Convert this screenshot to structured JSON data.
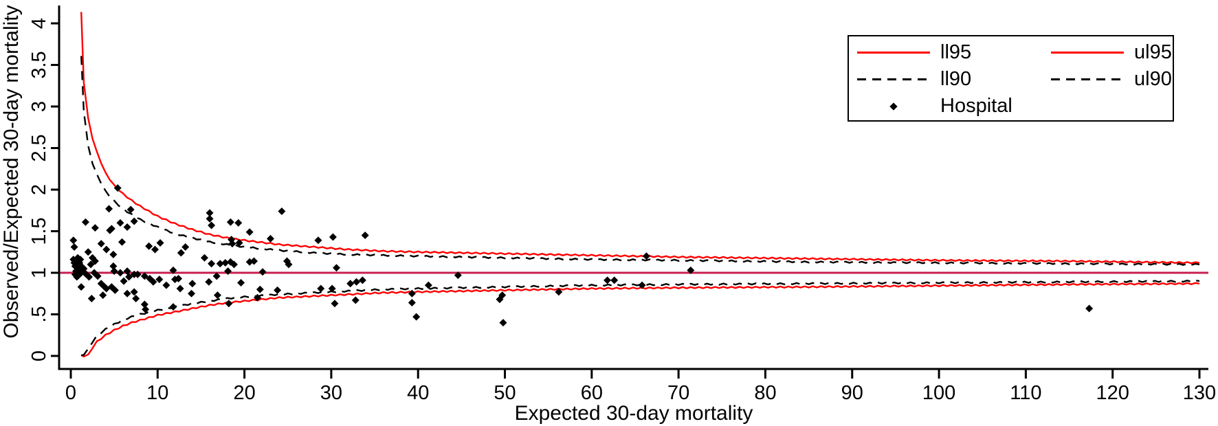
{
  "legend": {
    "col1": [
      {
        "swatch": "red-solid",
        "label": "ll95"
      },
      {
        "swatch": "black-dashed",
        "label": "ll90"
      },
      {
        "swatch": "diamond",
        "label": "Hospital"
      }
    ],
    "col2": [
      {
        "swatch": "red-solid",
        "label": "ul95"
      },
      {
        "swatch": "black-dashed",
        "label": "ul90"
      }
    ]
  },
  "chart_data": {
    "type": "scatter",
    "title": "",
    "xlabel": "Expected 30-day mortality",
    "ylabel": "Observed/Expected 30-day mortality",
    "xlim": [
      0,
      130
    ],
    "ylim": [
      0,
      4.2
    ],
    "x_ticks": [
      0,
      10,
      20,
      30,
      40,
      50,
      60,
      70,
      80,
      90,
      100,
      110,
      120,
      130
    ],
    "y_ticks": [
      0,
      0.5,
      1,
      1.5,
      2,
      2.5,
      3,
      3.5,
      4
    ],
    "y_tick_labels": [
      "0",
      ".5",
      "1",
      "1.5",
      "2",
      "2.5",
      "3",
      "3.5",
      "4"
    ],
    "grid": false,
    "legend_position": "top-right",
    "reference_line_y": 1,
    "colors": {
      "limit95": "#FF0000",
      "limit90": "#000000",
      "reference": "#C81E50",
      "marker": "#000000",
      "axis": "#000000"
    },
    "limits": {
      "x": [
        1.2,
        1.5,
        2,
        2.5,
        3,
        4,
        5,
        6,
        7,
        8,
        10,
        12,
        14,
        16,
        18,
        20,
        24,
        28,
        32,
        36,
        40,
        50,
        60,
        70,
        85,
        100,
        115,
        130
      ],
      "ul95": [
        4.13,
        3.3,
        2.85,
        2.62,
        2.45,
        2.2,
        2.05,
        1.95,
        1.87,
        1.8,
        1.68,
        1.59,
        1.52,
        1.46,
        1.42,
        1.39,
        1.34,
        1.31,
        1.28,
        1.26,
        1.25,
        1.23,
        1.21,
        1.19,
        1.17,
        1.15,
        1.14,
        1.12
      ],
      "ul90": [
        3.6,
        2.95,
        2.52,
        2.32,
        2.18,
        1.98,
        1.86,
        1.77,
        1.7,
        1.64,
        1.55,
        1.47,
        1.42,
        1.37,
        1.34,
        1.31,
        1.27,
        1.24,
        1.22,
        1.21,
        1.2,
        1.18,
        1.16,
        1.15,
        1.13,
        1.12,
        1.11,
        1.1
      ],
      "ll90": [
        0.0,
        0.02,
        0.08,
        0.17,
        0.24,
        0.32,
        0.38,
        0.43,
        0.47,
        0.5,
        0.55,
        0.59,
        0.63,
        0.66,
        0.69,
        0.71,
        0.74,
        0.76,
        0.78,
        0.8,
        0.81,
        0.83,
        0.85,
        0.86,
        0.87,
        0.88,
        0.89,
        0.9
      ],
      "ll95": [
        0.0,
        0.0,
        0.01,
        0.1,
        0.17,
        0.25,
        0.31,
        0.36,
        0.4,
        0.43,
        0.49,
        0.53,
        0.57,
        0.61,
        0.64,
        0.66,
        0.7,
        0.72,
        0.74,
        0.76,
        0.77,
        0.79,
        0.81,
        0.82,
        0.83,
        0.845,
        0.86,
        0.87
      ]
    },
    "hospitals": [
      [
        0.3,
        1.39
      ],
      [
        0.4,
        1.31
      ],
      [
        0.3,
        1.16
      ],
      [
        0.4,
        1.12
      ],
      [
        0.5,
        1.08
      ],
      [
        0.6,
        1.14
      ],
      [
        0.7,
        1.1
      ],
      [
        0.8,
        1.18
      ],
      [
        0.9,
        1.05
      ],
      [
        1.0,
        1.12
      ],
      [
        1.1,
        1.16
      ],
      [
        1.2,
        1.08
      ],
      [
        0.5,
        0.98
      ],
      [
        0.6,
        1.02
      ],
      [
        0.7,
        0.95
      ],
      [
        0.8,
        1.0
      ],
      [
        0.9,
        0.97
      ],
      [
        1.0,
        1.03
      ],
      [
        1.1,
        0.99
      ],
      [
        1.2,
        0.83
      ],
      [
        1.3,
        1.02
      ],
      [
        1.5,
        1.05
      ],
      [
        1.7,
        1.61
      ],
      [
        1.7,
        0.99
      ],
      [
        2.0,
        1.25
      ],
      [
        2.1,
        0.95
      ],
      [
        2.3,
        1.1
      ],
      [
        2.4,
        0.69
      ],
      [
        2.5,
        1.18
      ],
      [
        2.7,
        1.0
      ],
      [
        2.8,
        1.54
      ],
      [
        2.8,
        1.14
      ],
      [
        3.1,
        0.96
      ],
      [
        3.5,
        1.35
      ],
      [
        3.5,
        0.87
      ],
      [
        3.7,
        0.73
      ],
      [
        3.9,
        0.83
      ],
      [
        4.1,
        1.28
      ],
      [
        4.1,
        0.81
      ],
      [
        4.4,
        1.77
      ],
      [
        4.5,
        1.51
      ],
      [
        4.7,
        1.53
      ],
      [
        4.7,
        0.83
      ],
      [
        4.9,
        1.22
      ],
      [
        4.9,
        1.08
      ],
      [
        5.0,
        1.02
      ],
      [
        5.1,
        0.79
      ],
      [
        5.4,
        2.02
      ],
      [
        5.7,
        1.6
      ],
      [
        5.7,
        1.0
      ],
      [
        5.9,
        1.37
      ],
      [
        6.1,
        0.9
      ],
      [
        6.5,
        1.55
      ],
      [
        6.5,
        1.02
      ],
      [
        6.5,
        0.75
      ],
      [
        6.7,
        0.95
      ],
      [
        6.9,
        1.76
      ],
      [
        7.3,
        1.62
      ],
      [
        7.3,
        0.98
      ],
      [
        7.3,
        0.77
      ],
      [
        7.5,
        0.69
      ],
      [
        7.7,
        0.98
      ],
      [
        8.5,
        0.96
      ],
      [
        8.5,
        0.62
      ],
      [
        8.6,
        0.56
      ],
      [
        9.0,
        1.32
      ],
      [
        9.1,
        0.93
      ],
      [
        9.5,
        0.89
      ],
      [
        9.7,
        1.28
      ],
      [
        10.2,
        0.92
      ],
      [
        10.3,
        1.36
      ],
      [
        11.0,
        0.85
      ],
      [
        11.8,
        1.03
      ],
      [
        11.8,
        0.59
      ],
      [
        12.0,
        0.92
      ],
      [
        12.4,
        0.93
      ],
      [
        12.6,
        0.81
      ],
      [
        12.7,
        1.24
      ],
      [
        13.2,
        1.31
      ],
      [
        13.9,
        0.75
      ],
      [
        14.0,
        0.87
      ],
      [
        15.4,
        1.18
      ],
      [
        15.9,
        0.89
      ],
      [
        16.0,
        1.72
      ],
      [
        16.0,
        1.65
      ],
      [
        16.2,
        1.57
      ],
      [
        16.2,
        1.11
      ],
      [
        16.8,
        0.96
      ],
      [
        16.9,
        0.73
      ],
      [
        17.2,
        1.11
      ],
      [
        17.8,
        1.12
      ],
      [
        18.1,
        1.02
      ],
      [
        18.2,
        0.63
      ],
      [
        18.4,
        1.61
      ],
      [
        18.4,
        1.13
      ],
      [
        18.5,
        1.4
      ],
      [
        18.6,
        1.35
      ],
      [
        18.8,
        1.1
      ],
      [
        19.3,
        1.6
      ],
      [
        19.4,
        1.36
      ],
      [
        19.6,
        0.88
      ],
      [
        20.6,
        1.49
      ],
      [
        20.6,
        1.13
      ],
      [
        21.1,
        1.14
      ],
      [
        21.5,
        0.7
      ],
      [
        21.8,
        0.8
      ],
      [
        22.1,
        1.01
      ],
      [
        23.0,
        1.41
      ],
      [
        23.8,
        0.79
      ],
      [
        24.3,
        1.74
      ],
      [
        24.9,
        1.14
      ],
      [
        25.1,
        1.1
      ],
      [
        28.5,
        1.39
      ],
      [
        28.8,
        0.81
      ],
      [
        30.1,
        0.81
      ],
      [
        30.2,
        1.43
      ],
      [
        30.4,
        0.63
      ],
      [
        30.6,
        1.06
      ],
      [
        32.2,
        0.87
      ],
      [
        32.9,
        0.89
      ],
      [
        33.6,
        0.91
      ],
      [
        32.8,
        0.67
      ],
      [
        33.9,
        1.45
      ],
      [
        39.3,
        0.75
      ],
      [
        39.3,
        0.64
      ],
      [
        39.8,
        0.47
      ],
      [
        41.2,
        0.85
      ],
      [
        44.6,
        0.97
      ],
      [
        49.4,
        0.68
      ],
      [
        49.7,
        0.73
      ],
      [
        49.8,
        0.4
      ],
      [
        56.2,
        0.77
      ],
      [
        61.8,
        0.91
      ],
      [
        62.6,
        0.91
      ],
      [
        65.8,
        0.85
      ],
      [
        66.3,
        1.2
      ],
      [
        71.4,
        1.03
      ],
      [
        117.3,
        0.57
      ]
    ]
  }
}
